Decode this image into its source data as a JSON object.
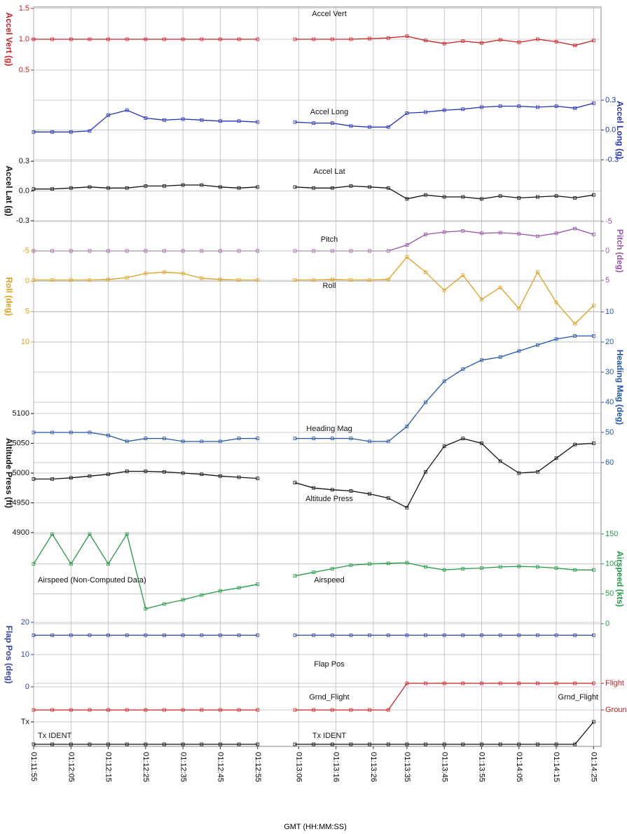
{
  "chart_data": {
    "type": "stacked-line",
    "x_label": "GMT (HH:MM:SS)",
    "x": [
      "01:11:55",
      "01:12:00",
      "01:12:05",
      "01:12:10",
      "01:12:15",
      "01:12:20",
      "01:12:25",
      "01:12:30",
      "01:12:35",
      "01:12:40",
      "01:12:45",
      "01:12:50",
      "01:12:55",
      "01:13:00",
      "01:13:05",
      "01:13:10",
      "01:13:15",
      "01:13:20",
      "01:13:25",
      "01:13:30",
      "01:13:35",
      "01:13:40",
      "01:13:45",
      "01:13:50",
      "01:13:55",
      "01:14:00",
      "01:14:05",
      "01:14:10",
      "01:14:15",
      "01:14:20",
      "01:14:25"
    ],
    "xlim": [
      "01:11:55",
      "01:14:27"
    ],
    "xticks": [
      "01:11:55",
      "01:12:05",
      "01:12:15",
      "01:12:25",
      "01:12:35",
      "01:12:45",
      "01:12:55",
      "01:13:06",
      "01:13:16",
      "01:13:26",
      "01:13:35",
      "01:13:45",
      "01:13:55",
      "01:14:05",
      "01:14:15",
      "01:14:25"
    ],
    "grid": true,
    "panels": [
      {
        "type": "line",
        "title": "Accel Vert",
        "y_label": "Accel Vert (g)",
        "side": "left",
        "color": "#cc2222",
        "values": [
          1,
          1,
          1,
          1,
          1,
          1,
          1,
          1,
          1,
          1,
          1,
          1,
          1,
          null,
          1,
          1,
          1,
          1,
          1.01,
          1.02,
          1.05,
          0.98,
          0.93,
          0.97,
          0.94,
          0.99,
          0.95,
          1.0,
          0.96,
          0.9,
          0.98
        ],
        "ylim": [
          0.5,
          1.5
        ],
        "yticks": [
          {
            "value": 0.5,
            "label": "0.5"
          },
          {
            "value": 1,
            "label": "1.0"
          },
          1.5
        ]
      },
      {
        "type": "line",
        "title": "Accel Long",
        "y_label": "Accel Long (g)",
        "side": "right",
        "color": "#2233bb",
        "values": [
          -0.02,
          -0.02,
          -0.02,
          -0.01,
          0.15,
          0.2,
          0.12,
          0.1,
          0.11,
          0.1,
          0.09,
          0.09,
          0.08,
          null,
          0.08,
          0.07,
          0.07,
          0.04,
          0.03,
          0.03,
          0.17,
          0.18,
          0.2,
          0.21,
          0.23,
          0.24,
          0.24,
          0.23,
          0.24,
          0.22,
          0.27
        ],
        "ylim": [
          -0.3,
          0.3
        ],
        "yticks": [
          -0.3,
          {
            "value": 0,
            "label": "0.0"
          },
          0.3
        ]
      },
      {
        "type": "line",
        "title": "Accel Lat",
        "y_label": "Accel Lat (g)",
        "side": "left",
        "color": "#111111",
        "values": [
          0.02,
          0.02,
          0.03,
          0.04,
          0.03,
          0.03,
          0.05,
          0.05,
          0.06,
          0.06,
          0.04,
          0.03,
          0.04,
          null,
          0.04,
          0.03,
          0.03,
          0.05,
          0.04,
          0.03,
          -0.08,
          -0.04,
          -0.06,
          -0.06,
          -0.08,
          -0.05,
          -0.07,
          -0.06,
          -0.05,
          -0.07,
          -0.04
        ],
        "ylim": [
          -0.3,
          0.3
        ],
        "yticks": [
          -0.3,
          {
            "value": 0,
            "label": "0.0"
          },
          0.3
        ]
      },
      {
        "type": "line",
        "title": "Pitch",
        "y_label": "Pitch (deg)",
        "side": "right",
        "color": "#9955aa",
        "values": [
          0,
          0,
          0,
          0,
          0,
          0,
          0,
          0,
          0,
          0,
          0,
          0,
          0,
          null,
          0,
          0,
          0,
          0,
          0,
          0,
          -1,
          -2.8,
          -3.2,
          -3.4,
          -3.0,
          -3.1,
          -2.9,
          -2.5,
          -3.0,
          -3.8,
          -2.8
        ],
        "ylim": [
          5,
          -5
        ],
        "yticks": [
          -5,
          0,
          5
        ]
      },
      {
        "type": "line",
        "title": "Roll",
        "y_label": "Roll (deg)",
        "side": "left",
        "color": "#e0a020",
        "values": [
          -0.2,
          -0.2,
          -0.2,
          -0.2,
          -0.3,
          -0.6,
          -1.3,
          -1.5,
          -1.3,
          -0.5,
          -0.3,
          -0.2,
          -0.2,
          null,
          -0.2,
          -0.2,
          -0.3,
          -0.2,
          -0.2,
          -0.3,
          -4.0,
          -1.5,
          1.5,
          -1.0,
          3.0,
          1.0,
          4.5,
          -1.5,
          3.5,
          7.0,
          4.0
        ],
        "ylim": [
          10,
          -5
        ],
        "yticks": [
          -5,
          0,
          5,
          10
        ]
      },
      {
        "type": "line",
        "title": "Heading Mag",
        "y_label": "Heading Mag (deg)",
        "side": "right",
        "color": "#2255aa",
        "values": [
          50,
          50,
          50,
          50,
          51,
          53,
          52,
          52,
          53,
          53,
          53,
          52,
          52,
          null,
          52,
          52,
          52,
          52,
          53,
          53,
          48,
          40,
          33,
          29,
          26,
          25,
          23,
          21,
          19,
          18,
          18
        ],
        "ylim": [
          60,
          10
        ],
        "yticks": [
          10,
          20,
          30,
          40,
          50,
          60
        ]
      },
      {
        "type": "line",
        "title": "Altitude Press",
        "y_label": "Altitude Press (ft)",
        "side": "left",
        "color": "#111111",
        "values": [
          4990,
          4990,
          4992,
          4995,
          4998,
          5003,
          5003,
          5002,
          5000,
          4998,
          4995,
          4993,
          4991,
          null,
          4984,
          4975,
          4972,
          4970,
          4965,
          4958,
          4942,
          5002,
          5045,
          5058,
          5050,
          5020,
          5000,
          5002,
          5025,
          5048,
          5050
        ],
        "ylim": [
          4900,
          5100
        ],
        "yticks": [
          4900,
          4950,
          5000,
          5050,
          5100
        ]
      },
      {
        "type": "line",
        "title": "Airspeed",
        "y_label": "Airspeed (kts)",
        "side": "right",
        "color": "#229944",
        "note": "Airspeed (Non-Computed Data)",
        "note_side": "left",
        "values": [
          100,
          150,
          100,
          150,
          100,
          150,
          25,
          33,
          40,
          48,
          55,
          60,
          66,
          null,
          80,
          86,
          92,
          98,
          100,
          101,
          102,
          95,
          90,
          92,
          93,
          95,
          96,
          95,
          93,
          90,
          90
        ],
        "ylim": [
          0,
          150
        ],
        "yticks": [
          0,
          50,
          100,
          150
        ]
      },
      {
        "type": "line",
        "title": "Flap Pos",
        "y_label": "Flap Pos (deg)",
        "side": "left",
        "color": "#3344aa",
        "values": [
          16,
          16,
          16,
          16,
          16,
          16,
          16,
          16,
          16,
          16,
          16,
          16,
          16,
          null,
          16,
          16,
          16,
          16,
          16,
          16,
          16,
          16,
          16,
          16,
          16,
          16,
          16,
          16,
          16,
          16,
          16
        ],
        "ylim": [
          0,
          20
        ],
        "yticks": [
          0,
          10,
          20
        ]
      },
      {
        "type": "line",
        "title": "Grnd_Flight",
        "side": "right",
        "color": "#cc2222",
        "note": "Grnd_Flight",
        "note_side": "right",
        "values": [
          0,
          0,
          0,
          0,
          0,
          0,
          0,
          0,
          0,
          0,
          0,
          0,
          0,
          null,
          0,
          0,
          0,
          0,
          0,
          0,
          1,
          1,
          1,
          1,
          1,
          1,
          1,
          1,
          1,
          1,
          1
        ],
        "ylim": [
          0,
          1
        ],
        "yticks": [
          {
            "value": 0,
            "label": "Ground"
          },
          {
            "value": 1,
            "label": "Flight"
          }
        ]
      },
      {
        "type": "line",
        "title": "Tx IDENT",
        "side": "left",
        "color": "#111111",
        "note": "Tx IDENT",
        "note_side": "left",
        "values": [
          0,
          0,
          0,
          0,
          0,
          0,
          0,
          0,
          0,
          0,
          0,
          0,
          0,
          null,
          0,
          0,
          0,
          0,
          0,
          0,
          0,
          0,
          0,
          0,
          0,
          0,
          0,
          0,
          0,
          0,
          1
        ],
        "ylim": [
          0,
          1
        ],
        "yticks": [
          {
            "value": 1,
            "label": "Tx"
          }
        ]
      }
    ]
  }
}
